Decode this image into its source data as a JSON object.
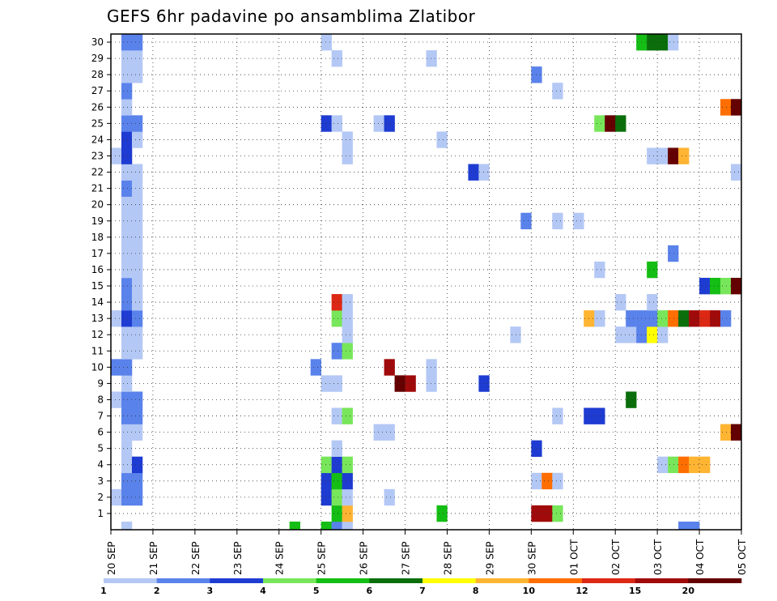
{
  "chart_data": {
    "type": "heatmap",
    "title": "GEFS 6hr padavine po ansamblima Zlatibor",
    "xlabel": "",
    "ylabel": "",
    "x_ticks": [
      "20 SEP",
      "21 SEP",
      "22 SEP",
      "23 SEP",
      "24 SEP",
      "25 SEP",
      "26 SEP",
      "27 SEP",
      "28 SEP",
      "29 SEP",
      "30 SEP",
      "01 OCT",
      "02 OCT",
      "03 OCT",
      "04 OCT",
      "05 OCT"
    ],
    "y_ticks": [
      1,
      2,
      3,
      4,
      5,
      6,
      7,
      8,
      9,
      10,
      11,
      12,
      13,
      14,
      15,
      16,
      17,
      18,
      19,
      20,
      21,
      22,
      23,
      24,
      25,
      26,
      27,
      28,
      29,
      30
    ],
    "time_steps_per_day": 4,
    "ylim": [
      0,
      30
    ],
    "grid": true,
    "colorbar": {
      "levels": [
        1,
        2,
        3,
        4,
        5,
        6,
        7,
        8,
        10,
        12,
        15,
        20
      ],
      "labels": [
        "1",
        "2",
        "3",
        "4",
        "5",
        "6",
        "7",
        "8",
        "10",
        "12",
        "15",
        "20"
      ],
      "colors": [
        "#b4c8f5",
        "#5a82eb",
        "#1e3cd2",
        "#78e65a",
        "#14be14",
        "#0a6e0a",
        "#ffff00",
        "#ffb432",
        "#ff6e00",
        "#dc2814",
        "#a00a0a",
        "#640000"
      ]
    },
    "cells": [
      {
        "m": 0,
        "t": 1,
        "c": 1
      },
      {
        "m": 0,
        "t": 17,
        "c": 5
      },
      {
        "m": 0,
        "t": 20,
        "c": 5
      },
      {
        "m": 0,
        "t": 21,
        "c": 2
      },
      {
        "m": 0,
        "t": 22,
        "c": 1
      },
      {
        "m": 0,
        "t": 54,
        "c": 2
      },
      {
        "m": 0,
        "t": 55,
        "c": 2
      },
      {
        "m": 1,
        "t": 21,
        "c": 5
      },
      {
        "m": 1,
        "t": 22,
        "c": 8
      },
      {
        "m": 1,
        "t": 31,
        "c": 5
      },
      {
        "m": 1,
        "t": 40,
        "c": 11
      },
      {
        "m": 1,
        "t": 41,
        "c": 11
      },
      {
        "m": 1,
        "t": 42,
        "c": 4
      },
      {
        "m": 2,
        "t": 0,
        "c": 1
      },
      {
        "m": 2,
        "t": 1,
        "c": 2
      },
      {
        "m": 2,
        "t": 2,
        "c": 2
      },
      {
        "m": 2,
        "t": 20,
        "c": 3
      },
      {
        "m": 2,
        "t": 21,
        "c": 4
      },
      {
        "m": 2,
        "t": 22,
        "c": 1
      },
      {
        "m": 2,
        "t": 26,
        "c": 1
      },
      {
        "m": 3,
        "t": 1,
        "c": 2
      },
      {
        "m": 3,
        "t": 2,
        "c": 2
      },
      {
        "m": 3,
        "t": 20,
        "c": 3
      },
      {
        "m": 3,
        "t": 21,
        "c": 5
      },
      {
        "m": 3,
        "t": 22,
        "c": 3
      },
      {
        "m": 3,
        "t": 40,
        "c": 1
      },
      {
        "m": 3,
        "t": 41,
        "c": 9
      },
      {
        "m": 3,
        "t": 42,
        "c": 1
      },
      {
        "m": 4,
        "t": 1,
        "c": 1
      },
      {
        "m": 4,
        "t": 2,
        "c": 3
      },
      {
        "m": 4,
        "t": 20,
        "c": 4
      },
      {
        "m": 4,
        "t": 21,
        "c": 3
      },
      {
        "m": 4,
        "t": 22,
        "c": 4
      },
      {
        "m": 4,
        "t": 52,
        "c": 1
      },
      {
        "m": 4,
        "t": 53,
        "c": 4
      },
      {
        "m": 4,
        "t": 54,
        "c": 9
      },
      {
        "m": 4,
        "t": 55,
        "c": 8
      },
      {
        "m": 4,
        "t": 56,
        "c": 8
      },
      {
        "m": 5,
        "t": 1,
        "c": 1
      },
      {
        "m": 5,
        "t": 21,
        "c": 1
      },
      {
        "m": 5,
        "t": 40,
        "c": 3
      },
      {
        "m": 6,
        "t": 1,
        "c": 1
      },
      {
        "m": 6,
        "t": 2,
        "c": 1
      },
      {
        "m": 6,
        "t": 25,
        "c": 1
      },
      {
        "m": 6,
        "t": 26,
        "c": 1
      },
      {
        "m": 6,
        "t": 58,
        "c": 8
      },
      {
        "m": 6,
        "t": 59,
        "c": 12
      },
      {
        "m": 7,
        "t": 1,
        "c": 2
      },
      {
        "m": 7,
        "t": 2,
        "c": 2
      },
      {
        "m": 7,
        "t": 21,
        "c": 1
      },
      {
        "m": 7,
        "t": 22,
        "c": 4
      },
      {
        "m": 7,
        "t": 42,
        "c": 1
      },
      {
        "m": 7,
        "t": 45,
        "c": 3
      },
      {
        "m": 7,
        "t": 46,
        "c": 3
      },
      {
        "m": 8,
        "t": 0,
        "c": 1
      },
      {
        "m": 8,
        "t": 1,
        "c": 2
      },
      {
        "m": 8,
        "t": 2,
        "c": 2
      },
      {
        "m": 8,
        "t": 49,
        "c": 6
      },
      {
        "m": 9,
        "t": 1,
        "c": 1
      },
      {
        "m": 9,
        "t": 20,
        "c": 1
      },
      {
        "m": 9,
        "t": 21,
        "c": 1
      },
      {
        "m": 9,
        "t": 27,
        "c": 12
      },
      {
        "m": 9,
        "t": 28,
        "c": 11
      },
      {
        "m": 9,
        "t": 30,
        "c": 1
      },
      {
        "m": 9,
        "t": 35,
        "c": 3
      },
      {
        "m": 10,
        "t": 0,
        "c": 2
      },
      {
        "m": 10,
        "t": 1,
        "c": 2
      },
      {
        "m": 10,
        "t": 19,
        "c": 2
      },
      {
        "m": 10,
        "t": 26,
        "c": 11
      },
      {
        "m": 10,
        "t": 30,
        "c": 1
      },
      {
        "m": 11,
        "t": 1,
        "c": 1
      },
      {
        "m": 11,
        "t": 2,
        "c": 1
      },
      {
        "m": 11,
        "t": 21,
        "c": 2
      },
      {
        "m": 11,
        "t": 22,
        "c": 4
      },
      {
        "m": 12,
        "t": 1,
        "c": 1
      },
      {
        "m": 12,
        "t": 2,
        "c": 1
      },
      {
        "m": 12,
        "t": 22,
        "c": 1
      },
      {
        "m": 12,
        "t": 38,
        "c": 1
      },
      {
        "m": 12,
        "t": 48,
        "c": 1
      },
      {
        "m": 12,
        "t": 49,
        "c": 1
      },
      {
        "m": 12,
        "t": 50,
        "c": 2
      },
      {
        "m": 12,
        "t": 51,
        "c": 7
      },
      {
        "m": 12,
        "t": 52,
        "c": 1
      },
      {
        "m": 13,
        "t": 0,
        "c": 1
      },
      {
        "m": 13,
        "t": 1,
        "c": 3
      },
      {
        "m": 13,
        "t": 2,
        "c": 2
      },
      {
        "m": 13,
        "t": 21,
        "c": 4
      },
      {
        "m": 13,
        "t": 22,
        "c": 1
      },
      {
        "m": 13,
        "t": 45,
        "c": 8
      },
      {
        "m": 13,
        "t": 46,
        "c": 1
      },
      {
        "m": 13,
        "t": 49,
        "c": 2
      },
      {
        "m": 13,
        "t": 50,
        "c": 2
      },
      {
        "m": 13,
        "t": 51,
        "c": 2
      },
      {
        "m": 13,
        "t": 52,
        "c": 4
      },
      {
        "m": 13,
        "t": 53,
        "c": 9
      },
      {
        "m": 13,
        "t": 54,
        "c": 6
      },
      {
        "m": 13,
        "t": 55,
        "c": 11
      },
      {
        "m": 13,
        "t": 56,
        "c": 10
      },
      {
        "m": 13,
        "t": 57,
        "c": 11
      },
      {
        "m": 13,
        "t": 58,
        "c": 2
      },
      {
        "m": 14,
        "t": 1,
        "c": 2
      },
      {
        "m": 14,
        "t": 2,
        "c": 1
      },
      {
        "m": 14,
        "t": 21,
        "c": 10
      },
      {
        "m": 14,
        "t": 22,
        "c": 1
      },
      {
        "m": 14,
        "t": 48,
        "c": 1
      },
      {
        "m": 14,
        "t": 51,
        "c": 1
      },
      {
        "m": 15,
        "t": 1,
        "c": 2
      },
      {
        "m": 15,
        "t": 2,
        "c": 1
      },
      {
        "m": 15,
        "t": 56,
        "c": 3
      },
      {
        "m": 15,
        "t": 57,
        "c": 5
      },
      {
        "m": 15,
        "t": 58,
        "c": 4
      },
      {
        "m": 15,
        "t": 59,
        "c": 12
      },
      {
        "m": 16,
        "t": 1,
        "c": 1
      },
      {
        "m": 16,
        "t": 2,
        "c": 1
      },
      {
        "m": 16,
        "t": 46,
        "c": 1
      },
      {
        "m": 16,
        "t": 51,
        "c": 5
      },
      {
        "m": 17,
        "t": 1,
        "c": 1
      },
      {
        "m": 17,
        "t": 2,
        "c": 1
      },
      {
        "m": 17,
        "t": 53,
        "c": 2
      },
      {
        "m": 18,
        "t": 1,
        "c": 1
      },
      {
        "m": 18,
        "t": 2,
        "c": 1
      },
      {
        "m": 19,
        "t": 1,
        "c": 1
      },
      {
        "m": 19,
        "t": 2,
        "c": 1
      },
      {
        "m": 19,
        "t": 39,
        "c": 2
      },
      {
        "m": 19,
        "t": 42,
        "c": 1
      },
      {
        "m": 19,
        "t": 44,
        "c": 1
      },
      {
        "m": 20,
        "t": 1,
        "c": 1
      },
      {
        "m": 20,
        "t": 2,
        "c": 1
      },
      {
        "m": 21,
        "t": 1,
        "c": 2
      },
      {
        "m": 21,
        "t": 2,
        "c": 1
      },
      {
        "m": 22,
        "t": 1,
        "c": 1
      },
      {
        "m": 22,
        "t": 2,
        "c": 1
      },
      {
        "m": 22,
        "t": 34,
        "c": 3
      },
      {
        "m": 22,
        "t": 35,
        "c": 1
      },
      {
        "m": 22,
        "t": 59,
        "c": 1
      },
      {
        "m": 23,
        "t": 0,
        "c": 1
      },
      {
        "m": 23,
        "t": 1,
        "c": 3
      },
      {
        "m": 23,
        "t": 22,
        "c": 1
      },
      {
        "m": 23,
        "t": 51,
        "c": 1
      },
      {
        "m": 23,
        "t": 52,
        "c": 1
      },
      {
        "m": 23,
        "t": 53,
        "c": 12
      },
      {
        "m": 23,
        "t": 54,
        "c": 8
      },
      {
        "m": 24,
        "t": 1,
        "c": 3
      },
      {
        "m": 24,
        "t": 2,
        "c": 1
      },
      {
        "m": 24,
        "t": 22,
        "c": 1
      },
      {
        "m": 24,
        "t": 31,
        "c": 1
      },
      {
        "m": 25,
        "t": 1,
        "c": 2
      },
      {
        "m": 25,
        "t": 2,
        "c": 2
      },
      {
        "m": 25,
        "t": 20,
        "c": 3
      },
      {
        "m": 25,
        "t": 21,
        "c": 1
      },
      {
        "m": 25,
        "t": 25,
        "c": 1
      },
      {
        "m": 25,
        "t": 26,
        "c": 3
      },
      {
        "m": 25,
        "t": 46,
        "c": 4
      },
      {
        "m": 25,
        "t": 47,
        "c": 12
      },
      {
        "m": 25,
        "t": 48,
        "c": 6
      },
      {
        "m": 26,
        "t": 1,
        "c": 1
      },
      {
        "m": 26,
        "t": 58,
        "c": 9
      },
      {
        "m": 26,
        "t": 59,
        "c": 12
      },
      {
        "m": 27,
        "t": 1,
        "c": 2
      },
      {
        "m": 27,
        "t": 42,
        "c": 1
      },
      {
        "m": 28,
        "t": 1,
        "c": 1
      },
      {
        "m": 28,
        "t": 2,
        "c": 1
      },
      {
        "m": 28,
        "t": 40,
        "c": 2
      },
      {
        "m": 29,
        "t": 1,
        "c": 1
      },
      {
        "m": 29,
        "t": 2,
        "c": 1
      },
      {
        "m": 29,
        "t": 21,
        "c": 1
      },
      {
        "m": 29,
        "t": 30,
        "c": 1
      },
      {
        "m": 30,
        "t": 1,
        "c": 2
      },
      {
        "m": 30,
        "t": 2,
        "c": 2
      },
      {
        "m": 30,
        "t": 20,
        "c": 1
      },
      {
        "m": 30,
        "t": 50,
        "c": 5
      },
      {
        "m": 30,
        "t": 51,
        "c": 6
      },
      {
        "m": 30,
        "t": 52,
        "c": 6
      },
      {
        "m": 30,
        "t": 53,
        "c": 1
      }
    ]
  }
}
